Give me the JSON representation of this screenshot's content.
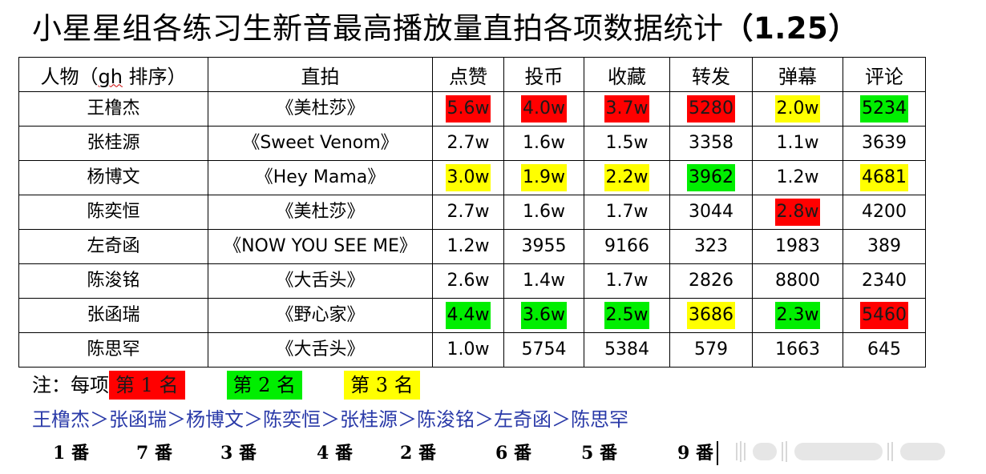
{
  "title": "小星星组各练习生新音最高播放量直拍各项数据统计",
  "title_suffix": "（1.25）",
  "table": {
    "headers": [
      "人物（",
      "gh",
      " 排序）",
      "直拍",
      "点赞",
      "投币",
      "收藏",
      "转发",
      "弹幕",
      "评论"
    ],
    "rows": [
      {
        "name": "王橹杰",
        "fancam": "《美杜莎》",
        "likes": "5.6w",
        "coins": "4.0w",
        "favorites": "3.7w",
        "shares": "5280",
        "danmaku": "2.0w",
        "comments": "5234"
      },
      {
        "name": "张桂源",
        "fancam": "《Sweet Venom》",
        "likes": "2.7w",
        "coins": "1.6w",
        "favorites": "1.5w",
        "shares": "3358",
        "danmaku": "1.1w",
        "comments": "3639"
      },
      {
        "name": "杨博文",
        "fancam": "《Hey Mama》",
        "likes": "3.0w",
        "coins": "1.9w",
        "favorites": "2.2w",
        "shares": "3962",
        "danmaku": "1.2w",
        "comments": "4681"
      },
      {
        "name": "陈奕恒",
        "fancam": "《美杜莎》",
        "likes": "2.7w",
        "coins": "1.6w",
        "favorites": "1.7w",
        "shares": "3044",
        "danmaku": "2.8w",
        "comments": "4200"
      },
      {
        "name": "左奇函",
        "fancam": "《NOW YOU SEE ME》",
        "likes": "1.2w",
        "coins": "3955",
        "favorites": "9166",
        "shares": "323",
        "danmaku": "1983",
        "comments": "389"
      },
      {
        "name": "陈浚铭",
        "fancam": "《大舌头》",
        "likes": "2.6w",
        "coins": "1.4w",
        "favorites": "1.7w",
        "shares": "2826",
        "danmaku": "8800",
        "comments": "2340"
      },
      {
        "name": "张函瑞",
        "fancam": "《野心家》",
        "likes": "4.4w",
        "coins": "3.6w",
        "favorites": "2.5w",
        "shares": "3686",
        "danmaku": "2.3w",
        "comments": "5460"
      },
      {
        "name": "陈思罕",
        "fancam": "《大舌头》",
        "likes": "1.0w",
        "coins": "5754",
        "favorites": "5384",
        "shares": "579",
        "danmaku": "1663",
        "comments": "645"
      }
    ]
  },
  "highlights": {
    "0": {
      "likes": "rank1",
      "coins": "rank1",
      "favorites": "rank1",
      "shares": "rank1",
      "danmaku": "rank3",
      "comments": "rank2"
    },
    "2": {
      "likes": "rank3",
      "coins": "rank3",
      "favorites": "rank3",
      "shares": "rank2",
      "comments": "rank3"
    },
    "3": {
      "danmaku": "rank1"
    },
    "6": {
      "likes": "rank2",
      "coins": "rank2",
      "favorites": "rank2",
      "shares": "rank3",
      "danmaku": "rank2",
      "comments": "rank1"
    }
  },
  "colors": {
    "rank1": "#ff0000",
    "rank2": "#00ee00",
    "rank3": "#ffff00",
    "order_text": "#2a3aa8"
  },
  "note": {
    "prefix": "注：每项",
    "legend": [
      {
        "label": "第 1 名",
        "rank": "rank1"
      },
      {
        "label": "第 2 名",
        "rank": "rank2"
      },
      {
        "label": "第 3 名",
        "rank": "rank3"
      }
    ]
  },
  "order_line": "王橹杰＞张函瑞＞杨博文＞陈奕恒＞张桂源＞陈浚铭＞左奇函＞陈思罕",
  "numbers": [
    "1 番",
    "7 番",
    "3 番",
    "4 番",
    "2 番",
    "6 番",
    "5 番",
    "9 番"
  ]
}
